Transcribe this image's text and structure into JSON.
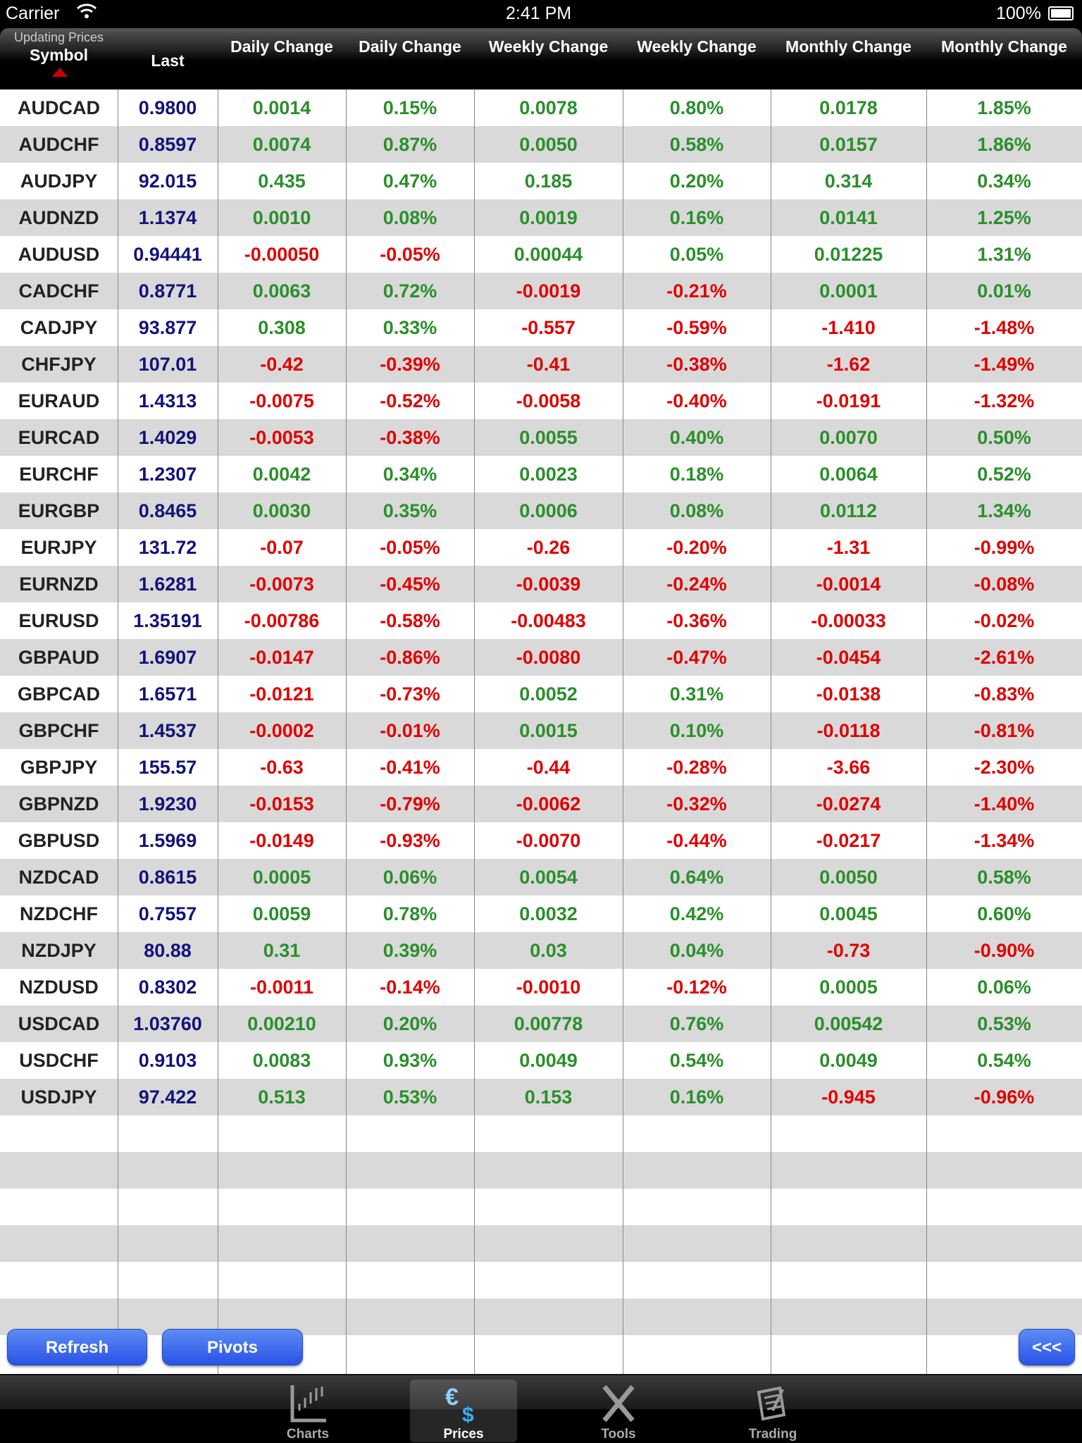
{
  "status_bar": {
    "carrier": "Carrier",
    "time": "2:41 PM",
    "battery": "100%"
  },
  "header": {
    "updating": "Updating Prices",
    "columns": [
      "Symbol",
      "Last",
      "Daily Change",
      "Daily Change",
      "Weekly Change",
      "Weekly Change",
      "Monthly Change",
      "Monthly Change"
    ]
  },
  "colors": {
    "positive": "#2a8f2a",
    "negative": "#e00000",
    "last": "#13137a",
    "symbol": "#222222"
  },
  "rows": [
    [
      "AUDCAD",
      "0.9800",
      "0.0014",
      "0.15%",
      "0.0078",
      "0.80%",
      "0.0178",
      "1.85%"
    ],
    [
      "AUDCHF",
      "0.8597",
      "0.0074",
      "0.87%",
      "0.0050",
      "0.58%",
      "0.0157",
      "1.86%"
    ],
    [
      "AUDJPY",
      "92.015",
      "0.435",
      "0.47%",
      "0.185",
      "0.20%",
      "0.314",
      "0.34%"
    ],
    [
      "AUDNZD",
      "1.1374",
      "0.0010",
      "0.08%",
      "0.0019",
      "0.16%",
      "0.0141",
      "1.25%"
    ],
    [
      "AUDUSD",
      "0.94441",
      "-0.00050",
      "-0.05%",
      "0.00044",
      "0.05%",
      "0.01225",
      "1.31%"
    ],
    [
      "CADCHF",
      "0.8771",
      "0.0063",
      "0.72%",
      "-0.0019",
      "-0.21%",
      "0.0001",
      "0.01%"
    ],
    [
      "CADJPY",
      "93.877",
      "0.308",
      "0.33%",
      "-0.557",
      "-0.59%",
      "-1.410",
      "-1.48%"
    ],
    [
      "CHFJPY",
      "107.01",
      "-0.42",
      "-0.39%",
      "-0.41",
      "-0.38%",
      "-1.62",
      "-1.49%"
    ],
    [
      "EURAUD",
      "1.4313",
      "-0.0075",
      "-0.52%",
      "-0.0058",
      "-0.40%",
      "-0.0191",
      "-1.32%"
    ],
    [
      "EURCAD",
      "1.4029",
      "-0.0053",
      "-0.38%",
      "0.0055",
      "0.40%",
      "0.0070",
      "0.50%"
    ],
    [
      "EURCHF",
      "1.2307",
      "0.0042",
      "0.34%",
      "0.0023",
      "0.18%",
      "0.0064",
      "0.52%"
    ],
    [
      "EURGBP",
      "0.8465",
      "0.0030",
      "0.35%",
      "0.0006",
      "0.08%",
      "0.0112",
      "1.34%"
    ],
    [
      "EURJPY",
      "131.72",
      "-0.07",
      "-0.05%",
      "-0.26",
      "-0.20%",
      "-1.31",
      "-0.99%"
    ],
    [
      "EURNZD",
      "1.6281",
      "-0.0073",
      "-0.45%",
      "-0.0039",
      "-0.24%",
      "-0.0014",
      "-0.08%"
    ],
    [
      "EURUSD",
      "1.35191",
      "-0.00786",
      "-0.58%",
      "-0.00483",
      "-0.36%",
      "-0.00033",
      "-0.02%"
    ],
    [
      "GBPAUD",
      "1.6907",
      "-0.0147",
      "-0.86%",
      "-0.0080",
      "-0.47%",
      "-0.0454",
      "-2.61%"
    ],
    [
      "GBPCAD",
      "1.6571",
      "-0.0121",
      "-0.73%",
      "0.0052",
      "0.31%",
      "-0.0138",
      "-0.83%"
    ],
    [
      "GBPCHF",
      "1.4537",
      "-0.0002",
      "-0.01%",
      "0.0015",
      "0.10%",
      "-0.0118",
      "-0.81%"
    ],
    [
      "GBPJPY",
      "155.57",
      "-0.63",
      "-0.41%",
      "-0.44",
      "-0.28%",
      "-3.66",
      "-2.30%"
    ],
    [
      "GBPNZD",
      "1.9230",
      "-0.0153",
      "-0.79%",
      "-0.0062",
      "-0.32%",
      "-0.0274",
      "-1.40%"
    ],
    [
      "GBPUSD",
      "1.5969",
      "-0.0149",
      "-0.93%",
      "-0.0070",
      "-0.44%",
      "-0.0217",
      "-1.34%"
    ],
    [
      "NZDCAD",
      "0.8615",
      "0.0005",
      "0.06%",
      "0.0054",
      "0.64%",
      "0.0050",
      "0.58%"
    ],
    [
      "NZDCHF",
      "0.7557",
      "0.0059",
      "0.78%",
      "0.0032",
      "0.42%",
      "0.0045",
      "0.60%"
    ],
    [
      "NZDJPY",
      "80.88",
      "0.31",
      "0.39%",
      "0.03",
      "0.04%",
      "-0.73",
      "-0.90%"
    ],
    [
      "NZDUSD",
      "0.8302",
      "-0.0011",
      "-0.14%",
      "-0.0010",
      "-0.12%",
      "0.0005",
      "0.06%"
    ],
    [
      "USDCAD",
      "1.03760",
      "0.00210",
      "0.20%",
      "0.00778",
      "0.76%",
      "0.00542",
      "0.53%"
    ],
    [
      "USDCHF",
      "0.9103",
      "0.0083",
      "0.93%",
      "0.0049",
      "0.54%",
      "0.0049",
      "0.54%"
    ],
    [
      "USDJPY",
      "97.422",
      "0.513",
      "0.53%",
      "0.153",
      "0.16%",
      "-0.945",
      "-0.96%"
    ]
  ],
  "buttons": {
    "refresh": "Refresh",
    "pivots": "Pivots",
    "back": "<<<"
  },
  "tabs": [
    {
      "label": "Charts",
      "icon": "chart-icon",
      "selected": false
    },
    {
      "label": "Prices",
      "icon": "currency-icon",
      "selected": true
    },
    {
      "label": "Tools",
      "icon": "tools-icon",
      "selected": false
    },
    {
      "label": "Trading",
      "icon": "trading-icon",
      "selected": false
    }
  ]
}
